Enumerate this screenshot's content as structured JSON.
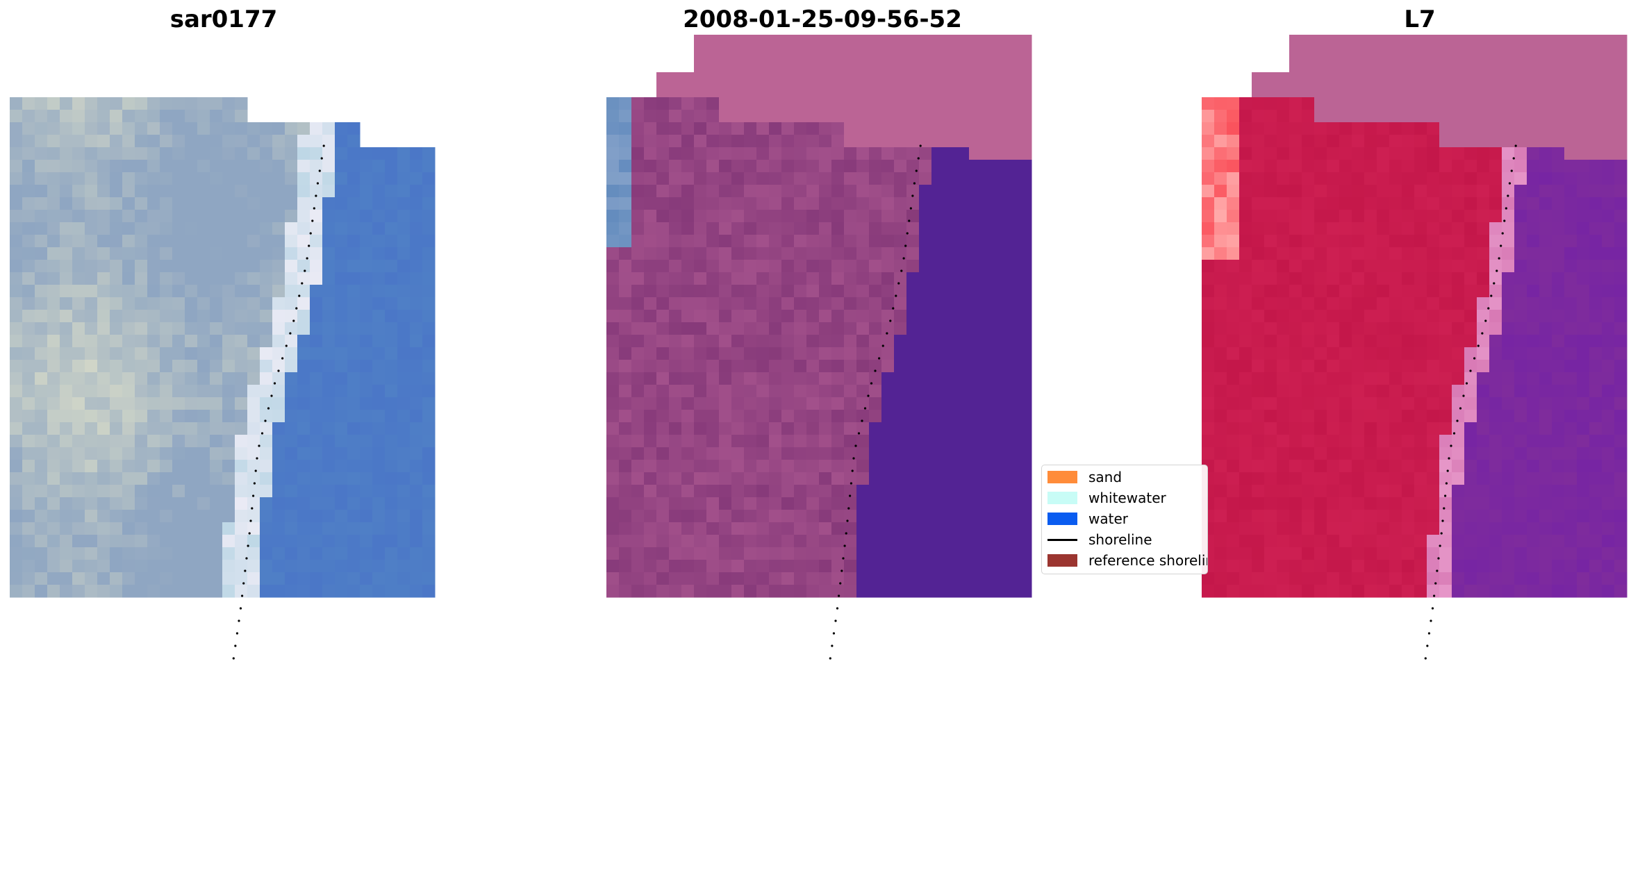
{
  "titles": {
    "left": "sar0177",
    "middle": "2008-01-25-09-56-52",
    "right": "L7"
  },
  "legend": {
    "items": [
      {
        "label": "sand",
        "color": "#ff8c3a",
        "kind": "patch"
      },
      {
        "label": "whitewater",
        "color": "#c8fcf6",
        "kind": "patch"
      },
      {
        "label": "water",
        "color": "#0a5cf0",
        "kind": "patch"
      },
      {
        "label": "shoreline",
        "color": "#000000",
        "kind": "line"
      },
      {
        "label": "reference shoreline",
        "color": "#9b3530",
        "kind": "patch"
      }
    ]
  },
  "colors": {
    "water_rgb": "#4f7fc6",
    "land_rgb": "#8fa6c2",
    "nodata_pink": "#bb6495",
    "water_class": "#532394",
    "land_class": "#873a7a",
    "ndwi_land": "#c4174a",
    "ndwi_water": "#7f2c9c"
  }
}
